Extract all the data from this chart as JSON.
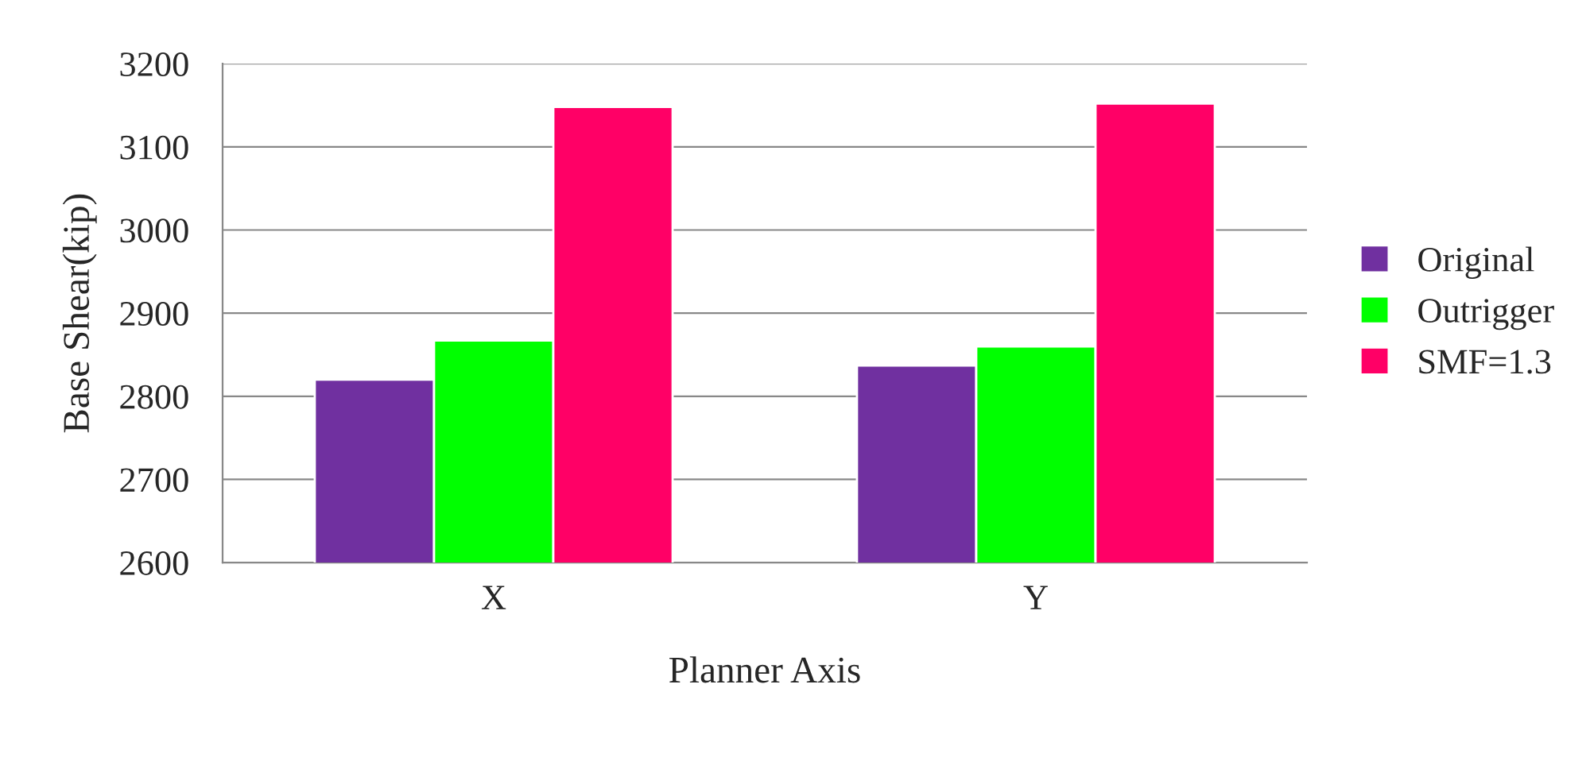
{
  "chart_data": {
    "type": "bar",
    "xlabel": "Planner Axis",
    "ylabel": "Base Shear(kip)",
    "categories": [
      "X",
      "Y"
    ],
    "series": [
      {
        "name": "Original",
        "color": "#7030a0",
        "values": [
          2820,
          2837
        ]
      },
      {
        "name": "Outrigger",
        "color": "#00ff00",
        "values": [
          2867,
          2860
        ]
      },
      {
        "name": "SMF=1.3",
        "color": "#ff0066",
        "values": [
          3148,
          3152
        ]
      }
    ],
    "ylim": [
      2600,
      3200
    ],
    "yticks": [
      2600,
      2700,
      2800,
      2900,
      3000,
      3100,
      3200
    ],
    "grid": "y",
    "legend": "right"
  }
}
